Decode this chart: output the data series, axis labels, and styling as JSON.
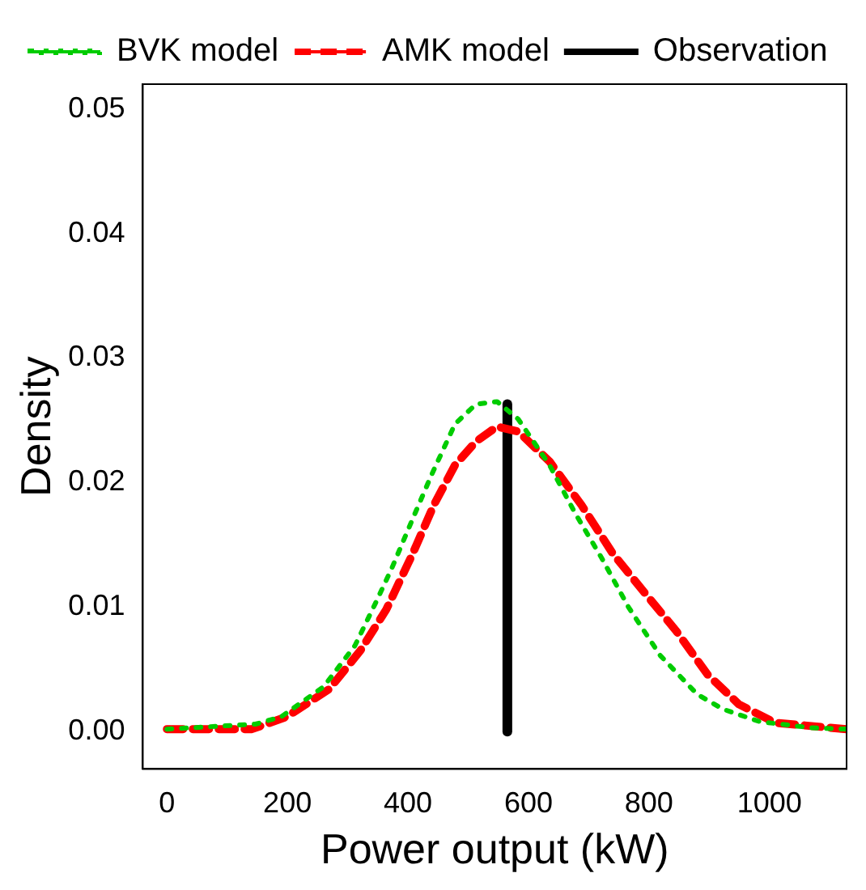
{
  "chart_data": {
    "type": "line",
    "xlabel": "Power output (kW)",
    "ylabel": "Density",
    "xlim": [
      -40,
      1128
    ],
    "ylim": [
      -0.003,
      0.052
    ],
    "xticks": [
      0,
      200,
      400,
      600,
      800,
      1000
    ],
    "yticks": [
      {
        "value": 0,
        "label": "0.00"
      },
      {
        "value": 0.01,
        "label": "0.01"
      },
      {
        "value": 0.02,
        "label": "0.02"
      },
      {
        "value": 0.03,
        "label": "0.03"
      },
      {
        "value": 0.04,
        "label": "0.04"
      },
      {
        "value": 0.05,
        "label": "0.05"
      }
    ],
    "grid": false,
    "legend": "top left",
    "marker": "none",
    "series": [
      {
        "name": "BVK model",
        "color": "#00cc00",
        "line_style": "dotted",
        "x": [
          0,
          147,
          190,
          260,
          312,
          347,
          373,
          408,
          439,
          478,
          513,
          548,
          583,
          635,
          678,
          722,
          766,
          819,
          880,
          923,
          984,
          1071,
          1128
        ],
        "values": [
          0.0002,
          0.0006,
          0.0012,
          0.0036,
          0.0069,
          0.0104,
          0.0131,
          0.0171,
          0.0206,
          0.0247,
          0.0263,
          0.0265,
          0.0251,
          0.0214,
          0.0175,
          0.0139,
          0.01,
          0.0061,
          0.003,
          0.0018,
          0.0008,
          0.0003,
          0.0002
        ]
      },
      {
        "name": "AMK model",
        "color": "#ff0000",
        "line_style": "dashed",
        "x": [
          0,
          141,
          199,
          269,
          321,
          364,
          408,
          443,
          478,
          513,
          548,
          583,
          635,
          688,
          740,
          792,
          845,
          897,
          949,
          1010,
          1128
        ],
        "values": [
          0.0002,
          0.0002,
          0.0012,
          0.0034,
          0.0065,
          0.0098,
          0.0143,
          0.0182,
          0.0214,
          0.0233,
          0.0245,
          0.0241,
          0.0217,
          0.0182,
          0.0143,
          0.0112,
          0.0081,
          0.0046,
          0.0022,
          0.0007,
          0.0002
        ]
      },
      {
        "name": "Observation",
        "color": "#000000",
        "line_style": "solid",
        "x": [
          565,
          565
        ],
        "values": [
          0,
          0.0263
        ]
      }
    ]
  }
}
